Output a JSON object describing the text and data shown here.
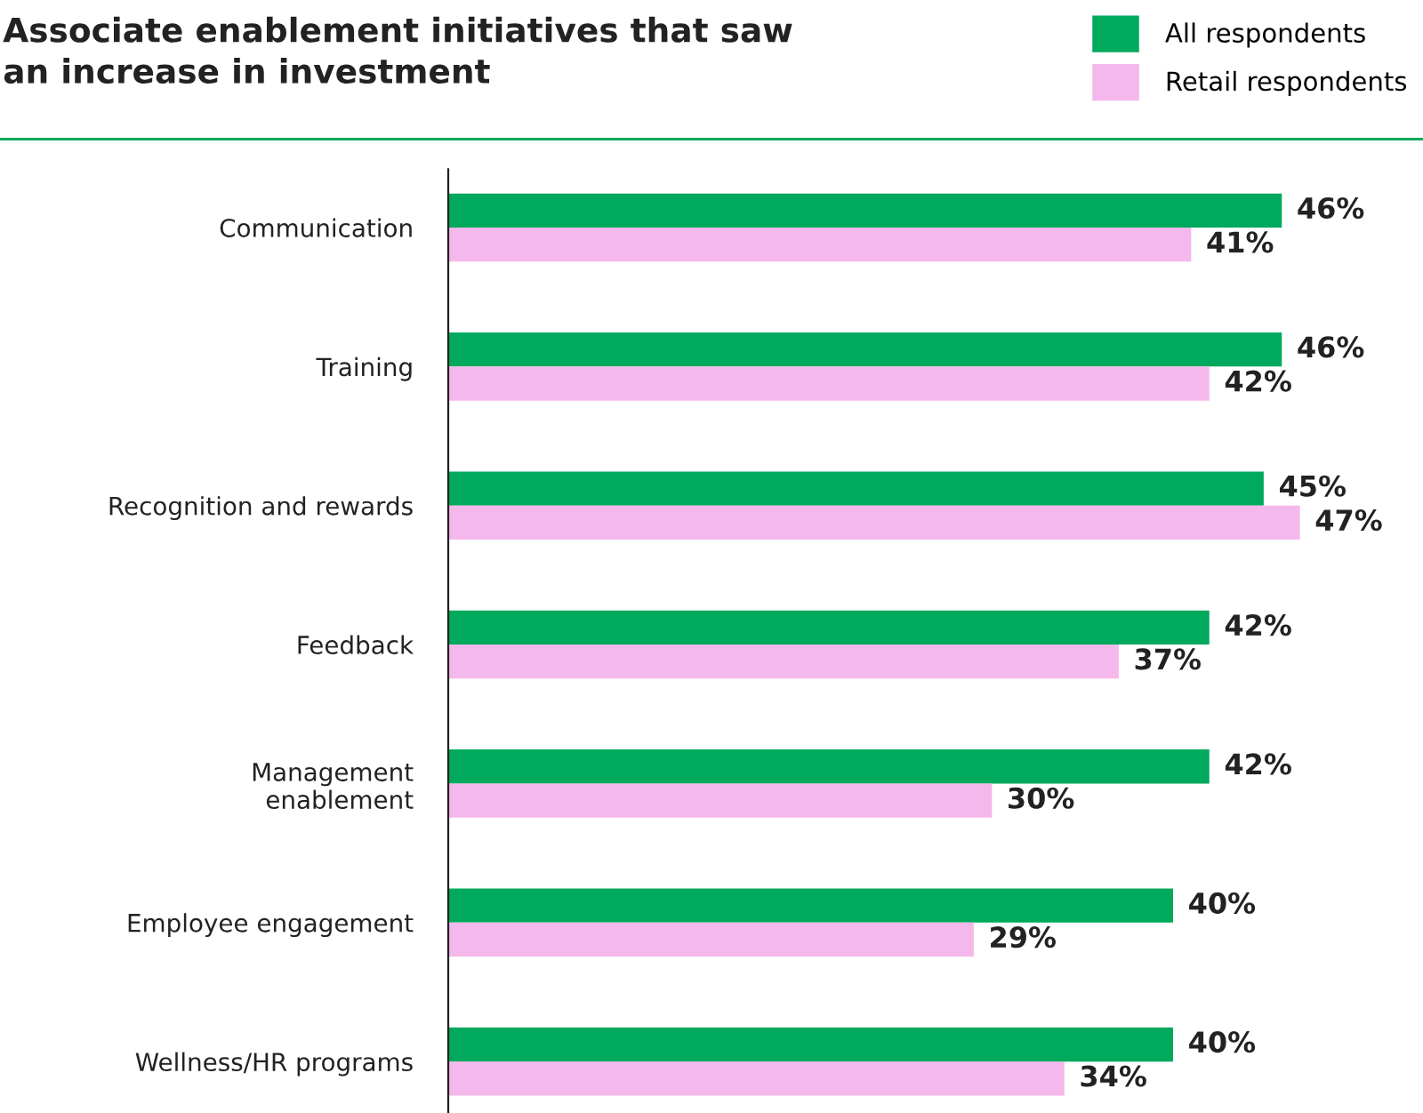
{
  "chart_data": {
    "type": "bar",
    "orientation": "horizontal",
    "title": "Associate enablement initiatives that saw\nan increase in investment",
    "categories": [
      "Communication",
      "Training",
      "Recognition and rewards",
      "Feedback",
      "Management\nenablement",
      "Employee engagement",
      "Wellness/HR programs"
    ],
    "series": [
      {
        "name": "All respondents",
        "color": "#00a95c",
        "values": [
          46,
          46,
          45,
          42,
          42,
          40,
          40
        ],
        "value_labels": [
          "46%",
          "46%",
          "45%",
          "42%",
          "42%",
          "40%",
          "40%"
        ]
      },
      {
        "name": "Retail respondents",
        "color": "#f5b8ec",
        "values": [
          41,
          42,
          47,
          37,
          30,
          29,
          34
        ],
        "value_labels": [
          "41%",
          "42%",
          "47%",
          "37%",
          "30%",
          "29%",
          "34%"
        ]
      }
    ],
    "tick_labels": "y",
    "grid": false,
    "legend": "top right"
  }
}
